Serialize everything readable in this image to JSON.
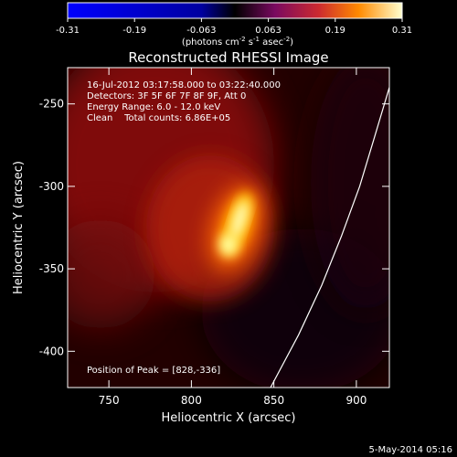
{
  "colorbar": {
    "tick_labels": [
      "-0.31",
      "-0.19",
      "-0.063",
      "0.063",
      "0.19",
      "0.31"
    ],
    "units_prefix": "(photons cm",
    "units_sup1": "-2",
    "units_mid": " s",
    "units_sup2": "-1",
    "units_mid2": " asec",
    "units_sup3": "-2",
    "units_suffix": ")"
  },
  "annotation": {
    "time_range": "16-Jul-2012 03:17:58.000 to 03:22:40.000",
    "detectors": "Detectors: 3F 5F 6F 7F 8F 9F, Att 0",
    "energy": "Energy Range: 6.0 - 12.0 keV",
    "clean": "Clean    Total counts: 6.86E+05",
    "peak": "Position of Peak = [828,-336]"
  },
  "footer": {
    "date": "5-May-2014 05:16"
  },
  "chart_data": {
    "type": "heatmap",
    "title": "Reconstructed RHESSI Image",
    "xlabel": "Heliocentric X (arcsec)",
    "ylabel": "Heliocentric Y (arcsec)",
    "xlim": [
      725,
      920
    ],
    "ylim": [
      -422,
      -228
    ],
    "x_ticks": [
      750,
      800,
      850,
      900
    ],
    "y_ticks": [
      -250,
      -300,
      -350,
      -400
    ],
    "colorbar_range": [
      -0.31,
      0.31
    ],
    "peak": {
      "x": 828,
      "y": -336
    },
    "limb_curve": [
      [
        848,
        -422
      ],
      [
        865,
        -390
      ],
      [
        879,
        -360
      ],
      [
        891,
        -330
      ],
      [
        902,
        -300
      ],
      [
        911,
        -270
      ],
      [
        920,
        -240
      ]
    ]
  }
}
